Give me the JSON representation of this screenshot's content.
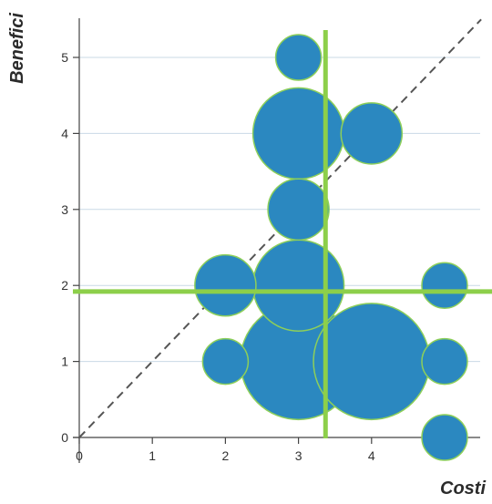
{
  "chart_data": {
    "type": "scatter",
    "title": "",
    "xlabel": "Costi",
    "ylabel": "Benefici",
    "xlim": [
      0,
      5.5
    ],
    "ylim": [
      0,
      5.5
    ],
    "xticks": [
      "0",
      "1",
      "2",
      "3",
      "4",
      "5"
    ],
    "yticks": [
      "0",
      "1",
      "2",
      "3",
      "4",
      "5"
    ],
    "grid": "horizontal",
    "series": [
      {
        "points": [
          {
            "x": 3,
            "y": 5,
            "size": 1
          },
          {
            "x": 3,
            "y": 4,
            "size": 4
          },
          {
            "x": 4,
            "y": 4,
            "size": 1.8
          },
          {
            "x": 3,
            "y": 3,
            "size": 1.8
          },
          {
            "x": 2,
            "y": 2,
            "size": 1.8
          },
          {
            "x": 3,
            "y": 2,
            "size": 4
          },
          {
            "x": 5,
            "y": 2,
            "size": 1
          },
          {
            "x": 2,
            "y": 1,
            "size": 1
          },
          {
            "x": 3,
            "y": 1,
            "size": 6.5
          },
          {
            "x": 4,
            "y": 1,
            "size": 6.5
          },
          {
            "x": 5,
            "y": 1,
            "size": 1
          },
          {
            "x": 5,
            "y": 0,
            "size": 1
          }
        ]
      }
    ],
    "reference_lines": {
      "vertical_x": 3.37,
      "horizontal_y": 1.92,
      "diagonal": true
    },
    "colors": {
      "bubble_fill": "#2b88c0",
      "bubble_stroke": "#8dcf5a",
      "ref_line": "#8dcf4a",
      "diagonal": "#555555",
      "grid": "#c9d9e6",
      "axis": "#444444"
    }
  }
}
